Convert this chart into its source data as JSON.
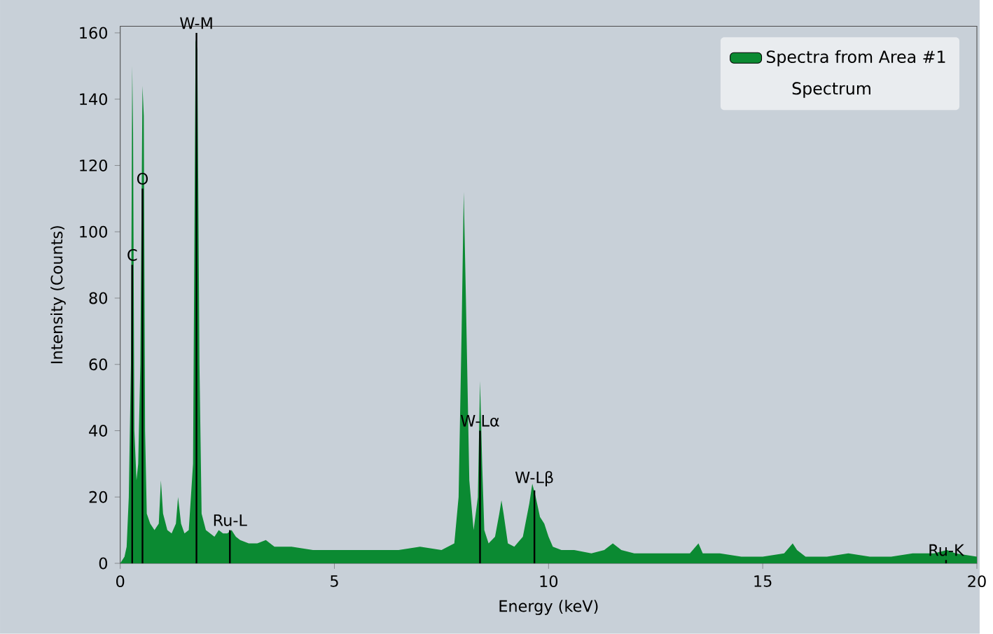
{
  "chart_data": {
    "type": "area",
    "xlabel": "Energy (keV)",
    "ylabel": "Intensity (Counts)",
    "legend_title": "Spectrum",
    "legend": "top right",
    "xlim": [
      0,
      20
    ],
    "ylim": [
      0,
      162
    ],
    "xticks": [
      0,
      5,
      10,
      15,
      20
    ],
    "yticks": [
      0,
      20,
      40,
      60,
      80,
      100,
      120,
      140,
      160
    ],
    "series": [
      {
        "name": "Spectra from Area #1",
        "color": "#0b8a32",
        "x": [
          0,
          0.1,
          0.15,
          0.2,
          0.25,
          0.28,
          0.3,
          0.33,
          0.38,
          0.42,
          0.47,
          0.52,
          0.55,
          0.58,
          0.62,
          0.7,
          0.8,
          0.9,
          0.95,
          1.0,
          1.1,
          1.2,
          1.3,
          1.35,
          1.42,
          1.5,
          1.6,
          1.7,
          1.76,
          1.8,
          1.85,
          1.9,
          2.0,
          2.1,
          2.2,
          2.3,
          2.4,
          2.5,
          2.6,
          2.7,
          2.8,
          3.0,
          3.2,
          3.4,
          3.6,
          3.8,
          4.0,
          4.5,
          5.0,
          5.5,
          6.0,
          6.5,
          7.0,
          7.5,
          7.8,
          7.9,
          7.97,
          8.02,
          8.07,
          8.15,
          8.25,
          8.35,
          8.4,
          8.45,
          8.5,
          8.6,
          8.75,
          8.85,
          8.9,
          8.95,
          9.05,
          9.2,
          9.4,
          9.55,
          9.62,
          9.7,
          9.8,
          9.9,
          10.0,
          10.1,
          10.3,
          10.6,
          11.0,
          11.3,
          11.5,
          11.7,
          12.0,
          12.5,
          13.0,
          13.3,
          13.5,
          13.6,
          14.0,
          14.5,
          15.0,
          15.5,
          15.7,
          15.8,
          16.0,
          16.5,
          17.0,
          17.5,
          18.0,
          18.5,
          19.0,
          19.3,
          19.5,
          20.0
        ],
        "values": [
          0,
          2,
          5,
          20,
          60,
          150,
          130,
          40,
          25,
          30,
          60,
          144,
          135,
          40,
          15,
          12,
          10,
          12,
          25,
          15,
          10,
          9,
          12,
          20,
          12,
          9,
          10,
          30,
          158,
          155,
          60,
          15,
          10,
          9,
          8,
          10,
          9,
          9,
          10,
          8,
          7,
          6,
          6,
          7,
          5,
          5,
          5,
          4,
          4,
          4,
          4,
          4,
          5,
          4,
          6,
          20,
          70,
          112,
          80,
          25,
          10,
          20,
          55,
          30,
          10,
          6,
          8,
          15,
          19,
          15,
          6,
          5,
          8,
          18,
          24,
          20,
          14,
          12,
          8,
          5,
          4,
          4,
          3,
          4,
          6,
          4,
          3,
          3,
          3,
          3,
          6,
          3,
          3,
          2,
          2,
          3,
          6,
          4,
          2,
          2,
          3,
          2,
          2,
          3,
          3,
          4,
          3,
          2
        ]
      },
      {
        "type": "bar",
        "color": "#000000",
        "x": [
          0.28,
          0.52,
          1.78,
          2.56,
          8.4,
          9.67,
          19.28
        ],
        "values": [
          90,
          113,
          160,
          10,
          40,
          22,
          1
        ]
      }
    ],
    "annotations": [
      {
        "text": "C",
        "x": 0.28,
        "y": 90
      },
      {
        "text": "O",
        "x": 0.52,
        "y": 113
      },
      {
        "text": "W-M",
        "x": 1.78,
        "y": 160
      },
      {
        "text": "Ru-L",
        "x": 2.56,
        "y": 10
      },
      {
        "text": "W-Lα",
        "x": 8.4,
        "y": 40
      },
      {
        "text": "W-Lβ",
        "x": 9.67,
        "y": 22
      },
      {
        "text": "Ru-K",
        "x": 19.28,
        "y": 1
      }
    ]
  }
}
